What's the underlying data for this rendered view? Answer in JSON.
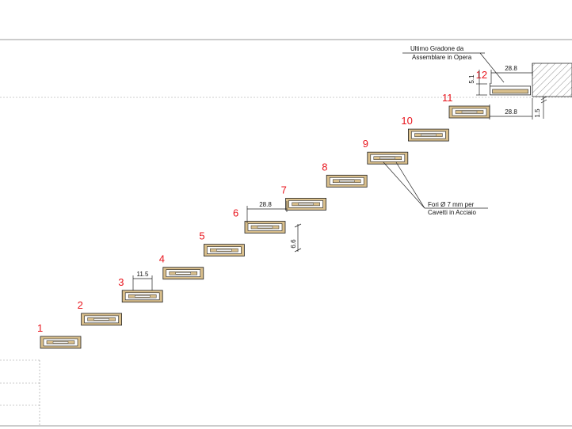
{
  "steps": [
    {
      "label": "1"
    },
    {
      "label": "2"
    },
    {
      "label": "3"
    },
    {
      "label": "4"
    },
    {
      "label": "5"
    },
    {
      "label": "6"
    },
    {
      "label": "7"
    },
    {
      "label": "8"
    },
    {
      "label": "9"
    },
    {
      "label": "10"
    },
    {
      "label": "11"
    },
    {
      "label": "12"
    }
  ],
  "dimensions": {
    "hole_spacing": "11.5",
    "tread_width_mid": "28.8",
    "tread_width_top": "28.8",
    "tread_width_11": "28.8",
    "riser_height": "6.6",
    "top_thickness": "5.1",
    "gap": "1.5"
  },
  "notes": {
    "last_step_line1": "Ultimo Gradone da",
    "last_step_line2": "Assemblare in Opera",
    "holes_line1": "Fori Ø 7 mm per",
    "holes_line2": "Cavetti in Acciaio"
  },
  "colors": {
    "step_number": "#e8141c",
    "wood": "#d9bf8c",
    "line": "#222222"
  }
}
